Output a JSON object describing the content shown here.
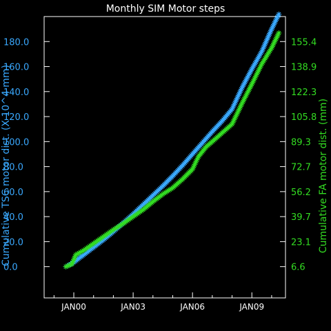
{
  "chart_data": {
    "type": "line",
    "title": "Monthly SIM Motor steps",
    "ylabel_left": "Cumulative TSC motor dist. (X 10^4 mm)",
    "ylabel_right": "Cumulative FA motor dist. (mm)",
    "y_left_ticks": [
      "0.0",
      "20.0",
      "40.0",
      "60.0",
      "80.0",
      "100.0",
      "120.0",
      "140.0",
      "160.0",
      "180.0"
    ],
    "y_right_ticks": [
      "6.6",
      "23.1",
      "39.7",
      "56.2",
      "72.7",
      "89.3",
      "105.8",
      "122.3",
      "138.9",
      "155.4"
    ],
    "x_ticks": [
      "JAN00",
      "JAN03",
      "JAN06",
      "JAN09"
    ],
    "x_tick_years": [
      2000,
      2003,
      2006,
      2009
    ],
    "xlim": [
      1998.5,
      2010.7
    ],
    "ylim_left": [
      -25,
      200
    ],
    "colors": {
      "tsc": "#3aa9ff",
      "fa": "#33dd22",
      "axes": "#ffffff",
      "background": "#000000"
    },
    "series": [
      {
        "key": "tsc",
        "axis": "left",
        "color": "#3aa9ff",
        "points": [
          [
            1999.6,
            0.0
          ],
          [
            2000.0,
            3.5
          ],
          [
            2000.5,
            9.5
          ],
          [
            2001.0,
            15.5
          ],
          [
            2001.5,
            21.5
          ],
          [
            2002.0,
            28.0
          ],
          [
            2002.5,
            35.0
          ],
          [
            2003.0,
            42.0
          ],
          [
            2003.5,
            49.5
          ],
          [
            2004.0,
            57.0
          ],
          [
            2004.5,
            64.5
          ],
          [
            2005.0,
            72.5
          ],
          [
            2005.5,
            81.0
          ],
          [
            2006.0,
            90.0
          ],
          [
            2006.5,
            99.0
          ],
          [
            2007.0,
            108.0
          ],
          [
            2007.5,
            116.5
          ],
          [
            2008.0,
            126.0
          ],
          [
            2008.5,
            143.0
          ],
          [
            2009.0,
            158.0
          ],
          [
            2009.5,
            172.0
          ],
          [
            2010.0,
            190.0
          ],
          [
            2010.4,
            203.0
          ]
        ]
      },
      {
        "key": "fa",
        "axis": "right",
        "color": "#33dd22",
        "points": [
          [
            1999.6,
            0.0
          ],
          [
            1999.9,
            2.0
          ],
          [
            2000.1,
            9.5
          ],
          [
            2000.5,
            13.0
          ],
          [
            2001.0,
            18.5
          ],
          [
            2001.5,
            24.0
          ],
          [
            2002.0,
            29.5
          ],
          [
            2002.5,
            34.5
          ],
          [
            2003.0,
            40.0
          ],
          [
            2003.5,
            45.5
          ],
          [
            2004.0,
            52.0
          ],
          [
            2004.5,
            58.0
          ],
          [
            2005.0,
            63.0
          ],
          [
            2005.5,
            70.0
          ],
          [
            2006.0,
            78.0
          ],
          [
            2006.3,
            88.0
          ],
          [
            2006.7,
            96.0
          ],
          [
            2007.0,
            100.0
          ],
          [
            2007.5,
            107.0
          ],
          [
            2008.0,
            114.0
          ],
          [
            2008.5,
            130.5
          ],
          [
            2009.0,
            146.0
          ],
          [
            2009.5,
            162.0
          ],
          [
            2010.0,
            175.0
          ],
          [
            2010.4,
            188.0
          ]
        ]
      }
    ]
  }
}
